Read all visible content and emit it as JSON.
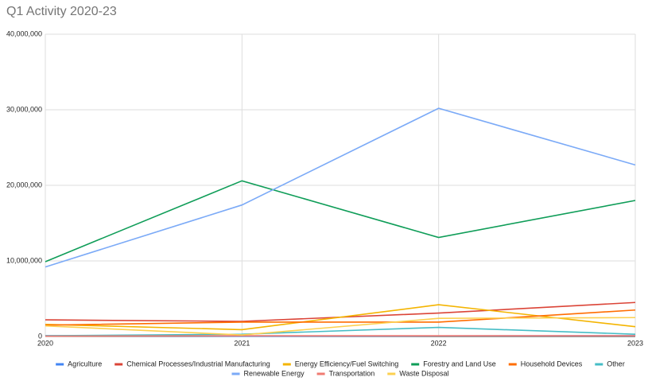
{
  "chart_data": {
    "type": "line",
    "title": "Q1 Activity 2020-23",
    "x": [
      2020,
      2021,
      2022,
      2023
    ],
    "xlim": [
      2020,
      2023
    ],
    "xticks": [
      2020,
      2021,
      2022,
      2023
    ],
    "ylim": [
      0,
      40000000
    ],
    "yticks": [
      0,
      {
        "value": 10000000,
        "label": "10,000,000"
      },
      {
        "value": 20000000,
        "label": "20,000,000"
      },
      {
        "value": 30000000,
        "label": "30,000,000"
      },
      {
        "value": 40000000,
        "label": "40,000,000"
      }
    ],
    "grid": true,
    "legend": "bottom",
    "series": [
      {
        "name": "Agriculture",
        "color": "#4285f4",
        "values": [
          100000,
          50000,
          80000,
          100000
        ]
      },
      {
        "name": "Chemical Processes/Industrial Manufacturing",
        "color": "#db4437",
        "values": [
          2200000,
          2000000,
          3100000,
          4500000
        ]
      },
      {
        "name": "Energy Efficiency/Fuel Switching",
        "color": "#f4b400",
        "values": [
          1600000,
          900000,
          4200000,
          1300000
        ]
      },
      {
        "name": "Forestry and Land Use",
        "color": "#0f9d58",
        "values": [
          9900000,
          20600000,
          13100000,
          18000000
        ]
      },
      {
        "name": "Household Devices",
        "color": "#ff6d01",
        "values": [
          1500000,
          1900000,
          1900000,
          3500000
        ]
      },
      {
        "name": "Other",
        "color": "#46bdc6",
        "values": [
          100000,
          300000,
          1200000,
          300000
        ]
      },
      {
        "name": "Renewable Energy",
        "color": "#7baaf7",
        "values": [
          9200000,
          17400000,
          30200000,
          22700000
        ]
      },
      {
        "name": "Transportation",
        "color": "#f07b72",
        "values": [
          50000,
          100000,
          100000,
          100000
        ]
      },
      {
        "name": "Waste Disposal",
        "color": "#fcd04f",
        "values": [
          1400000,
          200000,
          2400000,
          2500000
        ]
      }
    ]
  }
}
